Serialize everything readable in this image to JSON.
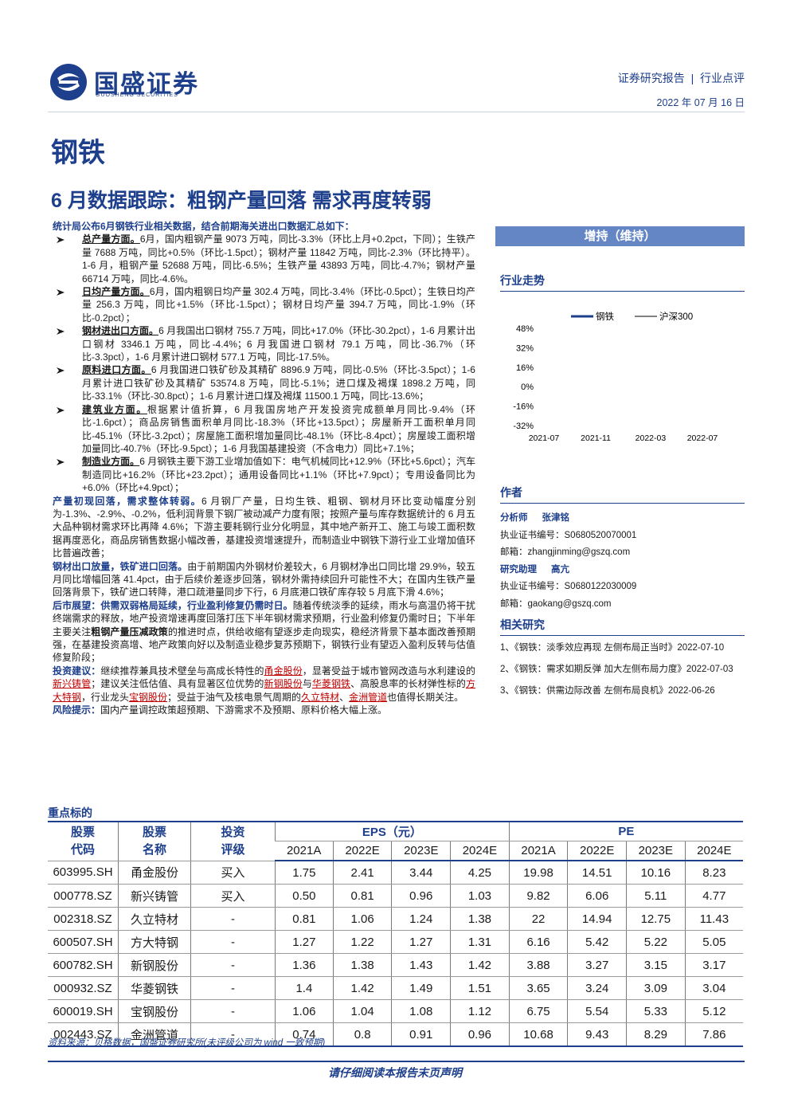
{
  "header": {
    "logo_name": "国盛证券",
    "logo_sub": "GUOSHENG SECURITIES",
    "report_type": "证券研究报告  |  行业点评",
    "date": "2022 年 07 月 16 日"
  },
  "industry": "钢铁",
  "title": "6 月数据跟踪：粗钢产量回落 需求再度转弱",
  "summary": {
    "intro": "统计局公布6月钢铁行业相关数据，结合前期海关进出口数据汇总如下：",
    "bullets": [
      {
        "heading": "总产量方面。",
        "text": "6月，国内粗钢产量 9073 万吨，同比-3.3%（环比上月+0.2pct，下同）；生铁产量 7688 万吨，同比+0.5%（环比-1.5pct）；钢材产量 11842 万吨，同比-2.3%（环比持平）。1-6 月，粗钢产量 52688 万吨，同比-6.5%；生铁产量 43893 万吨，同比-4.7%；钢材产量 66714 万吨，同比-4.6%。"
      },
      {
        "heading": "日均产量方面。",
        "text": "6月，国内粗钢日均产量 302.4 万吨，同比-3.4%（环比-0.5pct）；生铁日均产量 256.3 万吨，同比+1.5%（环比-1.5pct）；钢材日均产量 394.7 万吨，同比-1.9%（环比-0.2pct）；"
      },
      {
        "heading": "钢材进出口方面。",
        "text": "6 月我国出口钢材 755.7 万吨，同比+17.0%（环比-30.2pct），1-6 月累计出口钢材 3346.1 万吨，同比-4.4%；6 月我国进口钢材 79.1 万吨，同比-36.7%（环比-3.3pct），1-6 月累计进口钢材 577.1 万吨，同比-17.5%。"
      },
      {
        "heading": "原料进口方面。",
        "text": "6 月我国进口铁矿砂及其精矿 8896.9 万吨，同比-0.5%（环比-3.5pct）；1-6 月累计进口铁矿砂及其精矿 53574.8 万吨，同比-5.1%；进口煤及褐煤 1898.2 万吨，同比-33.1%（环比-30.8pct）；1-6 月累计进口煤及褐煤 11500.1 万吨，同比-13.6%；"
      },
      {
        "heading": "建筑业方面。",
        "text": "根据累计值折算，6 月我国房地产开发投资完成额单月同比-9.4%（环比-1.6pct）；商品房销售面积单月同比-18.3%（环比+13.5pct）；房屋新开工面积单月同比-45.1%（环比-3.2pct）；房屋施工面积增加量同比-48.1%（环比-8.4pct）；房屋竣工面积增加量同比-40.7%（环比-9.5pct）；1-6 月我国基建投资（不含电力）同比+7.1%；"
      },
      {
        "heading": "制造业方面。",
        "text": "6 月钢铁主要下游工业增加值如下：电气机械同比+12.9%（环比+5.6pct）；汽车制造同比+16.2%（环比+23.2pct）；通用设备同比+1.1%（环比+7.9pct）；专用设备同比为+6.0%（环比+4.9pct）；"
      }
    ],
    "paragraphs": [
      {
        "runs": [
          {
            "text": "产量初现回落，需求整体转弱。",
            "style": "heading"
          },
          {
            "text": "6 月钢厂产量，日均生铁、粗钢、钢材月环比变动幅度分别为-1.3%、-2.9%、-0.2%，低利润背景下钢厂被动减产力度有限；按照产量与库存数据统计的 6 月五大品种钢材需求环比再降 4.6%；下游主要耗钢行业分化明显，其中地产新开工、施工与竣工面积数据再度恶化，商品房销售数据小幅改善，基建投资增速提升，而制造业中钢铁下游行业工业增加值环比普遍改善；"
          }
        ]
      },
      {
        "runs": [
          {
            "text": "钢材出口放量，铁矿进口回落。",
            "style": "heading"
          },
          {
            "text": "由于前期国内外钢材价差较大，6 月钢材净出口同比增 29.9%，较五月同比增幅回落 41.4pct，由于后续价差逐步回落，钢材外需持续回升可能性不大；在国内生铁产量回落背景下，铁矿进口转降，港口疏港量同步下行，6 月底港口铁矿库存较 5 月底下滑 4.6%；"
          }
        ]
      },
      {
        "runs": [
          {
            "text": "后市展望：供需双弱格局延续，行业盈利修复仍需时日。",
            "style": "heading"
          },
          {
            "text": "随着传统淡季的延续，雨水与高温仍将干扰终端需求的释放，地产投资增速再度回落打压下半年钢材需求预期，行业盈利修复仍需时日；下半年主要关注"
          },
          {
            "text": "粗钢产量压减政策",
            "style": "bold"
          },
          {
            "text": "的推进时点，供给收缩有望逐步走向现实，稳经济背景下基本面改善预期强，在基建投资高增、地产政策向好以及制造业稳步复苏预期下，钢铁行业有望迈入盈利反转与估值修复阶段；"
          }
        ]
      },
      {
        "runs": [
          {
            "text": "投资建议：",
            "style": "heading"
          },
          {
            "text": "继续推荐兼具技术壁垒与高成长特性的"
          },
          {
            "text": "甬金股份",
            "style": "link"
          },
          {
            "text": "，显著受益于城市管网改造与水利建设的"
          },
          {
            "text": "新兴铸管",
            "style": "link"
          },
          {
            "text": "；建议关注低估值、具有显著区位优势的"
          },
          {
            "text": "新钢股份",
            "style": "link"
          },
          {
            "text": "与"
          },
          {
            "text": "华菱钢铁",
            "style": "link"
          },
          {
            "text": "、高股息率的长材弹性标的"
          },
          {
            "text": "方大特钢",
            "style": "link"
          },
          {
            "text": "，行业龙头"
          },
          {
            "text": "宝钢股份",
            "style": "link"
          },
          {
            "text": "；受益于油气及核电景气周期的"
          },
          {
            "text": "久立特材",
            "style": "link"
          },
          {
            "text": "、"
          },
          {
            "text": "金洲管道",
            "style": "link"
          },
          {
            "text": "也值得长期关注。"
          }
        ]
      },
      {
        "runs": [
          {
            "text": "风险提示：",
            "style": "heading"
          },
          {
            "text": "国内产量调控政策超预期、下游需求不及预期、原料价格大幅上涨。"
          }
        ]
      }
    ]
  },
  "sidebar": {
    "rating": "增持（维持）",
    "trend_title": "行业走势",
    "author_title": "作者",
    "authors": [
      {
        "role": "分析师",
        "name": "张津铭",
        "cert": "执业证书编号：S0680520070001",
        "email": "邮箱：zhangjinming@gszq.com"
      },
      {
        "role": "研究助理",
        "name": "高亢",
        "cert": "执业证书编号：S0680122030009",
        "email": "邮箱：gaokang@gszq.com"
      }
    ],
    "related_title": "相关研究",
    "related": [
      "1、《钢铁：淡季效应再现 左侧布局正当时》2022-07-10",
      "2、《钢铁：需求如期反弹 加大左侧布局力度》2022-07-03",
      "3、《钢铁：供需边际改善 左侧布局良机》2022-06-26"
    ]
  },
  "chart_data": {
    "type": "line",
    "categories": [
      "2021-07",
      null,
      null,
      null,
      null,
      null,
      null,
      null,
      null,
      null,
      null,
      null,
      null,
      null,
      null,
      null,
      null,
      "2021-11",
      null,
      null,
      null,
      null,
      null,
      null,
      null,
      null,
      null,
      null,
      null,
      null,
      null,
      null,
      null,
      null,
      null,
      "2022-03",
      null,
      null,
      null,
      null,
      null,
      null,
      null,
      null,
      null,
      null,
      null,
      null,
      null,
      null,
      null,
      null,
      "2022-07"
    ],
    "series": [
      {
        "name": "钢铁",
        "color": "#1d3f8c",
        "width": 3,
        "values": [
          5,
          10,
          18,
          22,
          12,
          10,
          20,
          30,
          39,
          28,
          12,
          4,
          0,
          -2,
          2,
          0,
          3,
          1,
          -2,
          4,
          2,
          -1,
          3,
          5,
          2,
          0,
          4,
          6,
          3,
          1,
          -1,
          2,
          -3,
          -1,
          -4,
          -6,
          -4,
          -8,
          -11,
          -14,
          -15,
          -12,
          -13,
          -10,
          -11,
          -8,
          -9,
          -7,
          -10,
          -8,
          -11,
          -9,
          -13
        ]
      },
      {
        "name": "沪深300",
        "color": "#000000",
        "width": 1,
        "values": [
          0,
          -1,
          -2,
          -1,
          -3,
          -2,
          -4,
          -3,
          -2,
          -4,
          -5,
          -3,
          -4,
          -2,
          -3,
          -4,
          -3,
          -5,
          -4,
          -3,
          -2,
          -4,
          -3,
          -5,
          -6,
          -4,
          -3,
          -5,
          -8,
          -7,
          -10,
          -9,
          -12,
          -11,
          -13,
          -15,
          -14,
          -17,
          -20,
          -21,
          -19,
          -18,
          -16,
          -14,
          -15,
          -13,
          -12,
          -11,
          -12,
          -10,
          -11,
          -9,
          -12
        ]
      }
    ],
    "ylim": [
      -32,
      48
    ],
    "yticks": [
      {
        "value": 48,
        "label": "48%"
      },
      {
        "value": 32,
        "label": "32%"
      },
      {
        "value": 16,
        "label": "16%"
      },
      {
        "value": 0,
        "label": "0%"
      },
      {
        "value": -16,
        "label": "-16%"
      },
      {
        "value": -32,
        "label": "-32%"
      }
    ]
  },
  "table": {
    "title": "重点标的",
    "headers": [
      "股票代码",
      "股票名称",
      "投资评级",
      "EPS（元）",
      "PE"
    ],
    "years": [
      "2021A",
      "2022E",
      "2023E",
      "2024E"
    ],
    "rows": [
      [
        "603995.SH",
        "甬金股份",
        "买入",
        "1.75",
        "2.41",
        "3.44",
        "4.25",
        "19.98",
        "14.51",
        "10.16",
        "8.23"
      ],
      [
        "000778.SZ",
        "新兴铸管",
        "买入",
        "0.50",
        "0.81",
        "0.96",
        "1.03",
        "9.82",
        "6.06",
        "5.11",
        "4.77"
      ],
      [
        "002318.SZ",
        "久立特材",
        "-",
        "0.81",
        "1.06",
        "1.24",
        "1.38",
        "22",
        "14.94",
        "12.75",
        "11.43"
      ],
      [
        "600507.SH",
        "方大特钢",
        "-",
        "1.27",
        "1.22",
        "1.27",
        "1.31",
        "6.16",
        "5.42",
        "5.22",
        "5.05"
      ],
      [
        "600782.SH",
        "新钢股份",
        "-",
        "1.36",
        "1.38",
        "1.43",
        "1.42",
        "3.88",
        "3.27",
        "3.15",
        "3.17"
      ],
      [
        "000932.SZ",
        "华菱钢铁",
        "-",
        "1.4",
        "1.42",
        "1.49",
        "1.51",
        "3.65",
        "3.24",
        "3.09",
        "3.04"
      ],
      [
        "600019.SH",
        "宝钢股份",
        "-",
        "1.06",
        "1.04",
        "1.08",
        "1.12",
        "6.75",
        "5.54",
        "5.33",
        "5.12"
      ],
      [
        "002443.SZ",
        "金洲管道",
        "-",
        "0.74",
        "0.8",
        "0.91",
        "0.96",
        "10.68",
        "9.43",
        "8.29",
        "7.86"
      ]
    ]
  },
  "source": "资料来源：贝格数据，国盛证券研究所(未评级公司为 wind 一致预期)",
  "footer": "请仔细阅读本报告末页声明"
}
